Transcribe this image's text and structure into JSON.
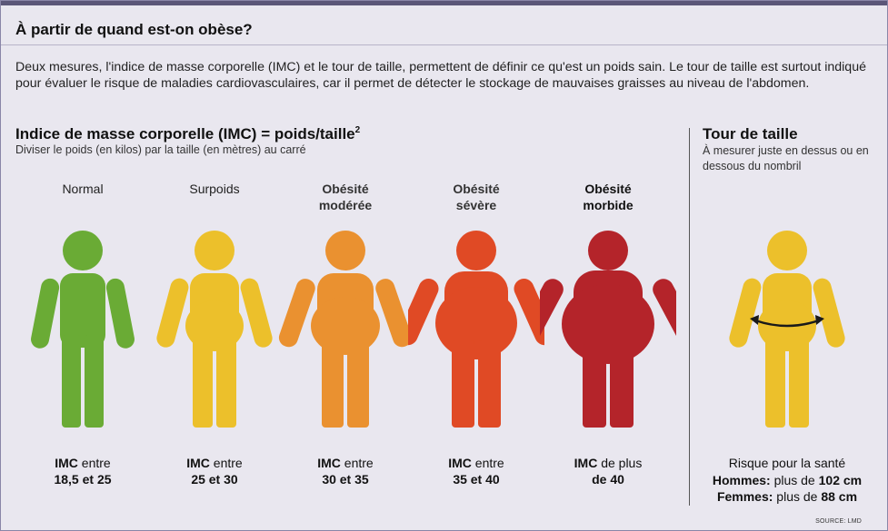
{
  "title": "À partir de quand est-on obèse?",
  "intro": "Deux mesures, l'indice de masse corporelle (IMC) et le tour de taille, permettent de définir ce qu'est un poids sain. Le tour de taille est surtout indiqué pour évaluer le risque de maladies cardiovasculaires, car il permet de détecter le stockage de mauvaises graisses au niveau de l'abdomen.",
  "imc": {
    "heading": "Indice de masse corporelle (IMC) = poids/taille",
    "heading_sup": "2",
    "subtitle": "Diviser le poids (en kilos) par la taille (en mètres) au carré",
    "categories": [
      {
        "label1": "Normal",
        "label2": "",
        "color": "#6aab35",
        "imc_bold": "IMC",
        "imc_rest": " entre",
        "imc_line2": "18,5 et 25"
      },
      {
        "label1": "Surpoids",
        "label2": "",
        "color": "#ecc02b",
        "imc_bold": "IMC",
        "imc_rest": " entre",
        "imc_line2": "25 et 30"
      },
      {
        "label1": "Obésité",
        "label2": "modérée",
        "color": "#ea9130",
        "imc_bold": "IMC",
        "imc_rest": " entre",
        "imc_line2": "30 et 35"
      },
      {
        "label1": "Obésité",
        "label2": "sévère",
        "color": "#e04a25",
        "imc_bold": "IMC",
        "imc_rest": " entre",
        "imc_line2": "35 et 40"
      },
      {
        "label1": "Obésité",
        "label2": "morbide",
        "color": "#b4242a",
        "imc_bold": "IMC",
        "imc_rest": " de plus",
        "imc_line2": "de 40"
      }
    ]
  },
  "tour": {
    "heading": "Tour de taille",
    "subtitle": "À mesurer juste en dessus ou en dessous du nombril",
    "color": "#ecc02b",
    "risk_label": "Risque pour la santé",
    "men_label": "Hommes:",
    "men_rest": " plus de ",
    "men_value": "102 cm",
    "women_label": "Femmes:",
    "women_rest": " plus de ",
    "women_value": "88 cm"
  },
  "source": "SOURCE: LMD"
}
